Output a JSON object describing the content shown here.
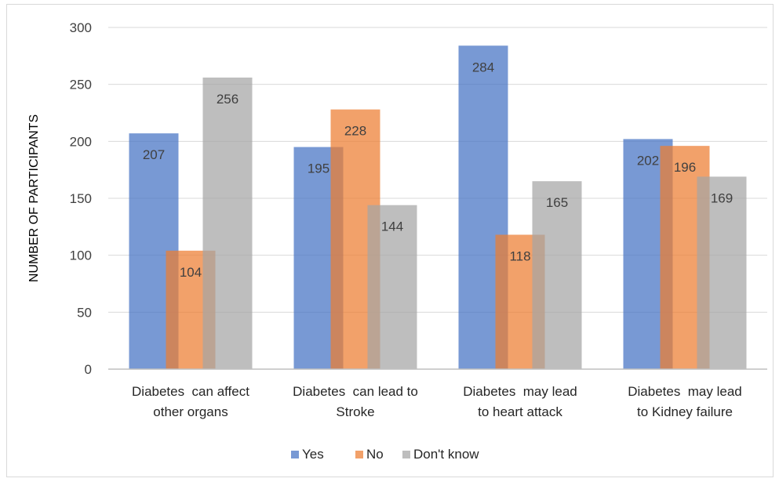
{
  "chart_data": {
    "type": "bar",
    "title": "",
    "xlabel": "",
    "ylabel": "NUMBER OF PARTICIPANTS",
    "ylim": [
      0,
      300
    ],
    "yticks": [
      0,
      50,
      100,
      150,
      200,
      250,
      300
    ],
    "grid": true,
    "legend": "bottom",
    "categories": [
      [
        "Diabetes  can affect",
        "other organs"
      ],
      [
        "Diabetes  can lead to",
        "Stroke"
      ],
      [
        "Diabetes  may lead",
        "to heart attack"
      ],
      [
        "Diabetes  may lead",
        "to Kidney failure"
      ]
    ],
    "series": [
      {
        "name": "Yes",
        "color": "#4472c4",
        "values": [
          207,
          195,
          284,
          202
        ]
      },
      {
        "name": "No",
        "color": "#ed7d31",
        "values": [
          104,
          228,
          118,
          196
        ]
      },
      {
        "name": "Don't know",
        "color": "#a5a5a5",
        "values": [
          256,
          144,
          165,
          169
        ]
      }
    ]
  }
}
